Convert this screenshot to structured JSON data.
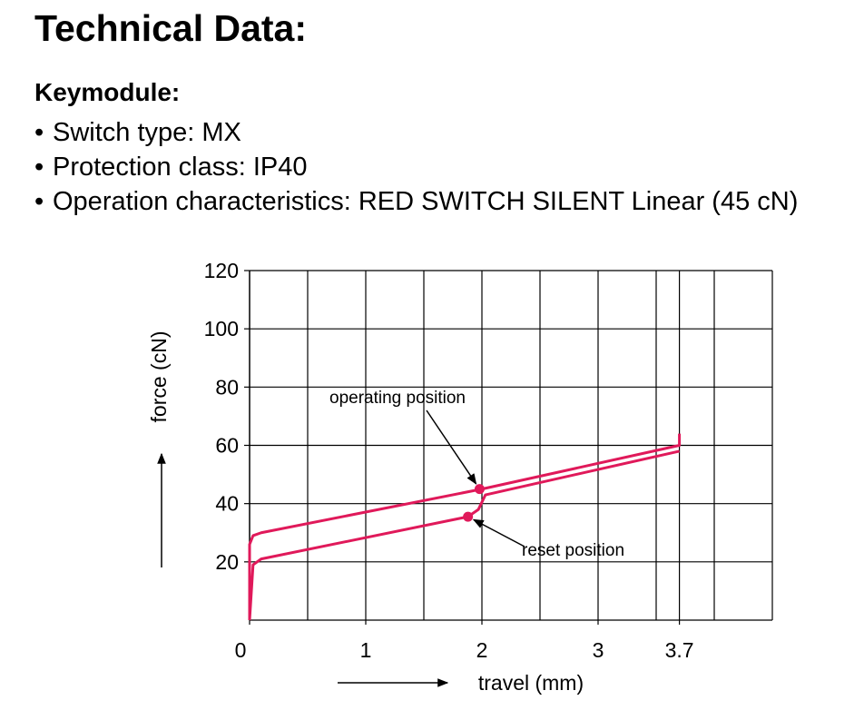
{
  "header": {
    "title": "Technical Data:",
    "subtitle": "Keymodule:"
  },
  "bullets": [
    "Switch type: MX",
    "Protection class: IP40",
    "Operation characteristics: RED SWITCH SILENT Linear (45 cN)"
  ],
  "chart_data": {
    "type": "line",
    "x_label": "travel (mm)",
    "y_label": "force (cN)",
    "xlim": [
      0,
      4.5
    ],
    "ylim": [
      0,
      120
    ],
    "xticks": [
      0,
      1,
      2,
      3,
      3.7
    ],
    "xgrid": [
      0.5,
      1,
      1.5,
      2,
      2.5,
      3,
      3.5,
      3.7,
      4,
      4.5
    ],
    "yticks": [
      20,
      40,
      60,
      80,
      100,
      120
    ],
    "ygrid": [
      0,
      20,
      40,
      60,
      80,
      100,
      120
    ],
    "grid": true,
    "series": [
      {
        "color": "#e0195a",
        "x": [
          0,
          0,
          0.03,
          0.1,
          2,
          3.7,
          3.7
        ],
        "values": [
          0,
          26,
          29,
          30,
          45,
          60,
          64
        ]
      },
      {
        "color": "#e0195a",
        "x": [
          0,
          0.03,
          0.1,
          1.88,
          1.97,
          2.03,
          3.7
        ],
        "values": [
          0,
          19,
          21,
          35.5,
          38,
          43,
          58
        ]
      }
    ],
    "annotations": [
      {
        "text": "operating position",
        "x": 1.98,
        "y": 45
      },
      {
        "text": "reset position",
        "x": 1.88,
        "y": 35.5
      }
    ]
  }
}
